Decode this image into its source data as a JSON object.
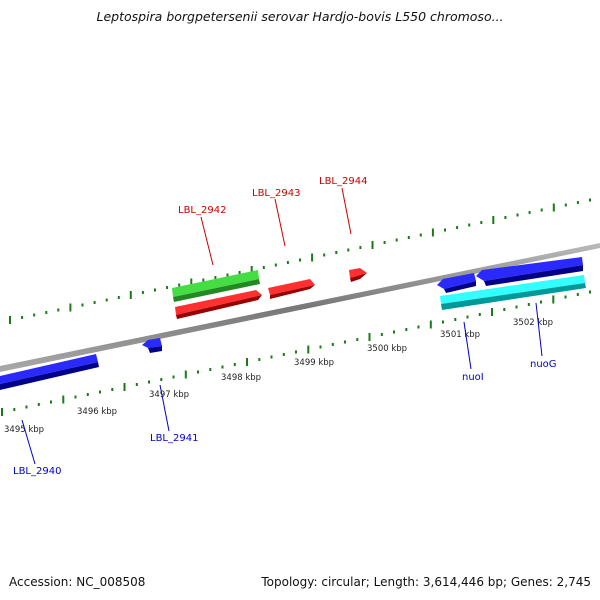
{
  "title": "Leptospira borgpetersenii serovar Hardjo-bovis L550 chromoso...",
  "footer": {
    "accession": "Accession: NC_008508",
    "summary": "Topology: circular; Length: 3,614,446 bp; Genes: 2,745"
  },
  "scale_labels": [
    "3495 kbp",
    "3496 kbp",
    "3497 kbp",
    "3498 kbp",
    "3499 kbp",
    "3500 kbp",
    "3501 kbp",
    "3502 kbp"
  ],
  "gene_labels": {
    "top": [
      "LBL_2942",
      "LBL_2943",
      "LBL_2944"
    ],
    "bottom": [
      "LBL_2940",
      "LBL_2941",
      "nuoI",
      "nuoG"
    ]
  },
  "colors": {
    "forward_label": "#cc0000",
    "reverse_label": "#0000cc",
    "scale": "#1a7a1a",
    "backbone": "#888888",
    "red_gene": "#ee1111",
    "green_gene": "#33bb33",
    "blue_gene": "#1111dd",
    "cyan_gene": "#11dddd"
  }
}
